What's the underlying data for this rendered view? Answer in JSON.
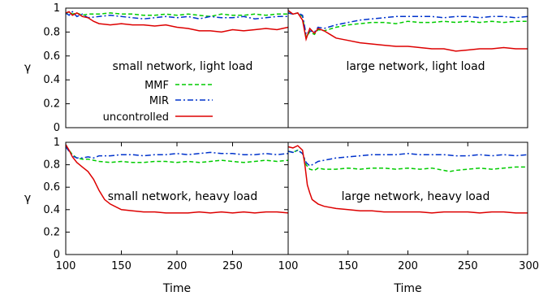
{
  "chart_data": [
    {
      "type": "line",
      "title": "small network, light load",
      "xlabel": "",
      "ylabel": "γ",
      "xlim": [
        100,
        300
      ],
      "ylim": [
        0,
        1
      ],
      "xticks": [],
      "yticks": [
        "0",
        "0.2",
        "0.4",
        "0.6",
        "0.8",
        "1"
      ],
      "legend": {
        "placement": "center-left"
      },
      "series": [
        {
          "name": "MMF",
          "color": "#00cc00",
          "style": "dashed",
          "x": [
            100,
            103,
            106,
            110,
            115,
            120,
            130,
            140,
            150,
            160,
            170,
            180,
            190,
            200,
            210,
            220,
            230,
            240,
            250,
            260,
            270,
            280,
            290,
            300
          ],
          "y": [
            0.95,
            0.97,
            0.95,
            0.96,
            0.94,
            0.95,
            0.95,
            0.96,
            0.95,
            0.95,
            0.94,
            0.94,
            0.95,
            0.94,
            0.95,
            0.94,
            0.93,
            0.95,
            0.94,
            0.94,
            0.95,
            0.94,
            0.95,
            0.95
          ]
        },
        {
          "name": "MIR",
          "color": "#0033cc",
          "style": "dashdot",
          "x": [
            100,
            103,
            106,
            110,
            115,
            120,
            130,
            140,
            150,
            160,
            170,
            180,
            190,
            200,
            210,
            220,
            230,
            240,
            250,
            260,
            270,
            280,
            290,
            300
          ],
          "y": [
            0.96,
            0.94,
            0.97,
            0.93,
            0.95,
            0.92,
            0.93,
            0.94,
            0.93,
            0.92,
            0.91,
            0.92,
            0.93,
            0.92,
            0.93,
            0.91,
            0.93,
            0.92,
            0.92,
            0.93,
            0.91,
            0.92,
            0.93,
            0.93
          ]
        },
        {
          "name": "uncontrolled",
          "color": "#dd0000",
          "style": "solid",
          "x": [
            100,
            103,
            106,
            110,
            115,
            120,
            125,
            130,
            140,
            150,
            160,
            170,
            180,
            190,
            200,
            210,
            220,
            230,
            240,
            250,
            260,
            270,
            280,
            290,
            300
          ],
          "y": [
            0.96,
            0.97,
            0.94,
            0.96,
            0.93,
            0.92,
            0.89,
            0.87,
            0.86,
            0.87,
            0.86,
            0.86,
            0.85,
            0.86,
            0.84,
            0.83,
            0.81,
            0.81,
            0.8,
            0.82,
            0.81,
            0.82,
            0.83,
            0.82,
            0.84
          ]
        }
      ]
    },
    {
      "type": "line",
      "title": "large network, light load",
      "xlabel": "",
      "ylabel": "",
      "xlim": [
        100,
        300
      ],
      "ylim": [
        0,
        1
      ],
      "xticks": [],
      "yticks": [],
      "series": [
        {
          "name": "MMF",
          "color": "#00cc00",
          "style": "dashed",
          "x": [
            100,
            104,
            108,
            112,
            115,
            118,
            122,
            125,
            130,
            140,
            150,
            160,
            170,
            180,
            190,
            200,
            210,
            220,
            230,
            240,
            250,
            260,
            270,
            280,
            290,
            300
          ],
          "y": [
            0.96,
            0.95,
            0.96,
            0.93,
            0.76,
            0.8,
            0.78,
            0.82,
            0.81,
            0.84,
            0.86,
            0.87,
            0.88,
            0.88,
            0.87,
            0.89,
            0.88,
            0.88,
            0.89,
            0.88,
            0.89,
            0.88,
            0.89,
            0.88,
            0.89,
            0.89
          ]
        },
        {
          "name": "MIR",
          "color": "#0033cc",
          "style": "dashdot",
          "x": [
            100,
            104,
            108,
            112,
            115,
            118,
            122,
            125,
            130,
            140,
            150,
            160,
            170,
            180,
            190,
            200,
            210,
            220,
            230,
            240,
            250,
            260,
            270,
            280,
            290,
            300
          ],
          "y": [
            0.96,
            0.95,
            0.96,
            0.94,
            0.78,
            0.81,
            0.8,
            0.84,
            0.83,
            0.86,
            0.88,
            0.9,
            0.91,
            0.92,
            0.93,
            0.93,
            0.93,
            0.93,
            0.92,
            0.93,
            0.93,
            0.92,
            0.93,
            0.93,
            0.92,
            0.93
          ]
        },
        {
          "name": "uncontrolled",
          "color": "#dd0000",
          "style": "solid",
          "x": [
            100,
            104,
            108,
            112,
            115,
            118,
            122,
            125,
            130,
            135,
            140,
            150,
            160,
            170,
            180,
            190,
            200,
            210,
            220,
            230,
            240,
            250,
            260,
            270,
            280,
            290,
            300
          ],
          "y": [
            0.98,
            0.95,
            0.96,
            0.9,
            0.74,
            0.83,
            0.79,
            0.83,
            0.81,
            0.78,
            0.75,
            0.73,
            0.71,
            0.7,
            0.69,
            0.68,
            0.68,
            0.67,
            0.66,
            0.66,
            0.64,
            0.65,
            0.66,
            0.66,
            0.67,
            0.66,
            0.66
          ]
        }
      ]
    },
    {
      "type": "line",
      "title": "small network, heavy load",
      "xlabel": "Time",
      "ylabel": "γ",
      "xlim": [
        100,
        300
      ],
      "ylim": [
        0,
        1
      ],
      "xticks": [
        "100",
        "150",
        "200",
        "250"
      ],
      "yticks": [
        "0",
        "0.2",
        "0.4",
        "0.6",
        "0.8",
        "1"
      ],
      "series": [
        {
          "name": "MMF",
          "color": "#00cc00",
          "style": "dashed",
          "x": [
            100,
            103,
            106,
            110,
            115,
            120,
            125,
            130,
            140,
            150,
            160,
            170,
            180,
            190,
            200,
            210,
            220,
            230,
            240,
            250,
            260,
            270,
            280,
            290,
            300
          ],
          "y": [
            0.97,
            0.93,
            0.89,
            0.86,
            0.85,
            0.85,
            0.84,
            0.83,
            0.82,
            0.83,
            0.82,
            0.82,
            0.83,
            0.83,
            0.82,
            0.83,
            0.82,
            0.83,
            0.84,
            0.83,
            0.82,
            0.83,
            0.84,
            0.83,
            0.84
          ]
        },
        {
          "name": "MIR",
          "color": "#0033cc",
          "style": "dashdot",
          "x": [
            100,
            103,
            106,
            110,
            115,
            120,
            125,
            130,
            140,
            150,
            160,
            170,
            180,
            190,
            200,
            210,
            220,
            230,
            240,
            250,
            260,
            270,
            280,
            290,
            300
          ],
          "y": [
            0.96,
            0.92,
            0.88,
            0.86,
            0.86,
            0.87,
            0.86,
            0.88,
            0.88,
            0.89,
            0.89,
            0.88,
            0.89,
            0.89,
            0.9,
            0.89,
            0.9,
            0.91,
            0.9,
            0.9,
            0.89,
            0.89,
            0.9,
            0.89,
            0.9
          ]
        },
        {
          "name": "uncontrolled",
          "color": "#dd0000",
          "style": "solid",
          "x": [
            100,
            103,
            106,
            110,
            115,
            120,
            125,
            130,
            135,
            140,
            150,
            160,
            170,
            180,
            190,
            200,
            210,
            220,
            230,
            240,
            250,
            260,
            270,
            280,
            290,
            300
          ],
          "y": [
            0.98,
            0.93,
            0.87,
            0.82,
            0.78,
            0.74,
            0.67,
            0.57,
            0.49,
            0.45,
            0.4,
            0.39,
            0.38,
            0.38,
            0.37,
            0.37,
            0.37,
            0.38,
            0.37,
            0.38,
            0.37,
            0.38,
            0.37,
            0.38,
            0.38,
            0.37
          ]
        }
      ]
    },
    {
      "type": "line",
      "title": "large network, heavy load",
      "xlabel": "Time",
      "ylabel": "",
      "xlim": [
        100,
        300
      ],
      "ylim": [
        0,
        1
      ],
      "xticks": [
        "100",
        "150",
        "200",
        "250",
        "300"
      ],
      "yticks": [],
      "series": [
        {
          "name": "MMF",
          "color": "#00cc00",
          "style": "dashed",
          "x": [
            100,
            104,
            108,
            112,
            115,
            118,
            122,
            125,
            130,
            140,
            150,
            160,
            170,
            180,
            190,
            200,
            210,
            220,
            230,
            235,
            240,
            250,
            260,
            270,
            280,
            290,
            300
          ],
          "y": [
            0.92,
            0.91,
            0.93,
            0.9,
            0.8,
            0.76,
            0.75,
            0.77,
            0.76,
            0.76,
            0.77,
            0.76,
            0.77,
            0.77,
            0.76,
            0.77,
            0.76,
            0.77,
            0.75,
            0.74,
            0.75,
            0.76,
            0.77,
            0.76,
            0.77,
            0.78,
            0.78
          ]
        },
        {
          "name": "MIR",
          "color": "#0033cc",
          "style": "dashdot",
          "x": [
            100,
            104,
            108,
            112,
            115,
            118,
            122,
            125,
            130,
            140,
            150,
            160,
            170,
            180,
            190,
            200,
            210,
            220,
            230,
            240,
            250,
            260,
            270,
            280,
            290,
            300
          ],
          "y": [
            0.92,
            0.91,
            0.93,
            0.9,
            0.82,
            0.79,
            0.81,
            0.83,
            0.84,
            0.86,
            0.87,
            0.88,
            0.89,
            0.89,
            0.89,
            0.9,
            0.89,
            0.89,
            0.89,
            0.88,
            0.88,
            0.89,
            0.88,
            0.89,
            0.88,
            0.89
          ]
        },
        {
          "name": "uncontrolled",
          "color": "#dd0000",
          "style": "solid",
          "x": [
            100,
            104,
            108,
            112,
            114,
            116,
            118,
            120,
            125,
            130,
            140,
            150,
            160,
            170,
            180,
            190,
            200,
            210,
            220,
            230,
            240,
            250,
            260,
            270,
            280,
            290,
            300
          ],
          "y": [
            0.96,
            0.95,
            0.97,
            0.93,
            0.8,
            0.62,
            0.55,
            0.49,
            0.45,
            0.43,
            0.41,
            0.4,
            0.39,
            0.39,
            0.38,
            0.38,
            0.38,
            0.38,
            0.37,
            0.38,
            0.38,
            0.38,
            0.37,
            0.38,
            0.38,
            0.37,
            0.37
          ]
        }
      ]
    }
  ]
}
